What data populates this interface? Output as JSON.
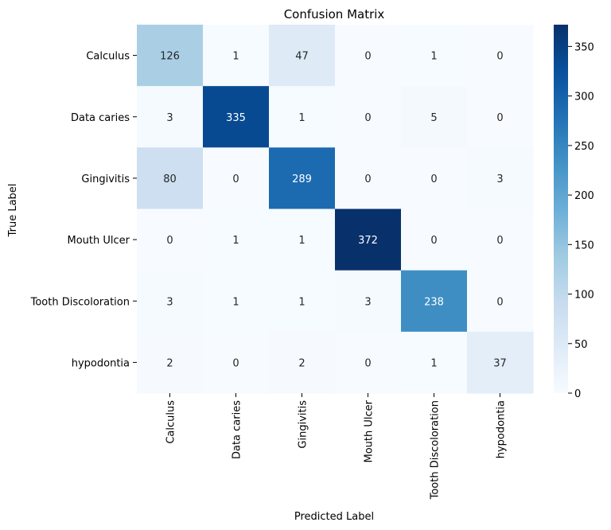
{
  "chart_data": {
    "type": "heatmap",
    "title": "Confusion Matrix",
    "xlabel": "Predicted Label",
    "ylabel": "True Label",
    "x_categories": [
      "Calculus",
      "Data caries",
      "Gingivitis",
      "Mouth Ulcer",
      "Tooth Discoloration",
      "hypodontia"
    ],
    "y_categories": [
      "Calculus",
      "Data caries",
      "Gingivitis",
      "Mouth Ulcer",
      "Tooth Discoloration",
      "hypodontia"
    ],
    "values": [
      [
        126,
        1,
        47,
        0,
        1,
        0
      ],
      [
        3,
        335,
        1,
        0,
        5,
        0
      ],
      [
        80,
        0,
        289,
        0,
        0,
        3
      ],
      [
        0,
        1,
        1,
        372,
        0,
        0
      ],
      [
        3,
        1,
        1,
        3,
        238,
        0
      ],
      [
        2,
        0,
        2,
        0,
        1,
        37
      ]
    ],
    "colormap": "Blues",
    "vmin": 0,
    "vmax": 372,
    "colorbar_ticks": [
      0,
      50,
      100,
      150,
      200,
      250,
      300,
      350
    ],
    "annotated": true
  }
}
